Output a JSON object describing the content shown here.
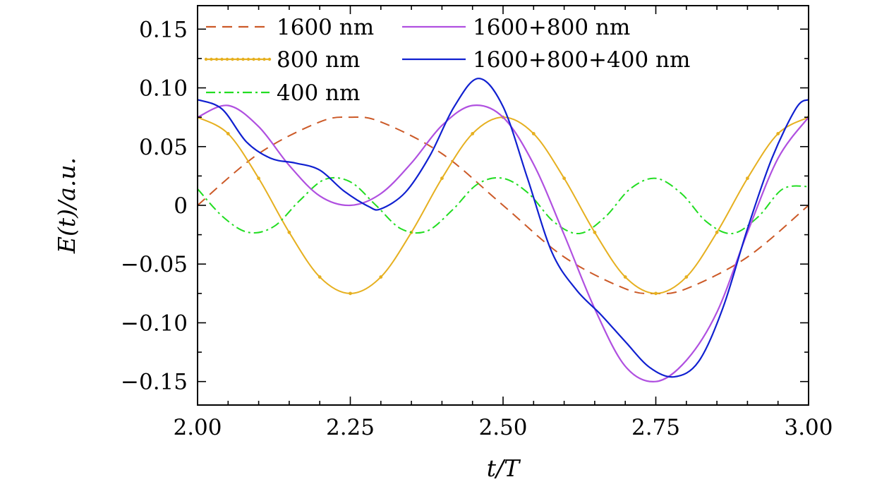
{
  "chart_data": {
    "type": "line",
    "title": "",
    "xlabel": "t/T",
    "ylabel": "E(t)/a.u.",
    "xlim": [
      2.0,
      3.0
    ],
    "ylim": [
      -0.17,
      0.17
    ],
    "x_ticks": [
      2.0,
      2.25,
      2.5,
      2.75,
      3.0
    ],
    "x_tick_labels": [
      "2.00",
      "2.25",
      "2.50",
      "2.75",
      "3.00"
    ],
    "y_ticks": [
      0.15,
      0.1,
      0.05,
      0,
      -0.05,
      -0.1,
      -0.15
    ],
    "y_tick_labels": [
      "0.15",
      "0.10",
      "0.05",
      "0",
      "−0.05",
      "−0.10",
      "−0.15"
    ],
    "grid": false,
    "legend_placement": "top",
    "series": [
      {
        "name": "1600 nm",
        "style": "dashed",
        "color": "#cc5a28",
        "x": [
          2.0,
          2.1,
          2.2,
          2.25,
          2.3,
          2.4,
          2.5,
          2.6,
          2.7,
          2.75,
          2.8,
          2.9,
          3.0
        ],
        "values": [
          0.0,
          0.044,
          0.071,
          0.075,
          0.071,
          0.044,
          0.0,
          -0.044,
          -0.071,
          -0.075,
          -0.071,
          -0.044,
          0.0
        ]
      },
      {
        "name": "800 nm",
        "style": "dotted-line",
        "color": "#e6b020",
        "x": [
          2.0,
          2.05,
          2.1,
          2.15,
          2.2,
          2.25,
          2.3,
          2.35,
          2.4,
          2.45,
          2.5,
          2.55,
          2.6,
          2.65,
          2.7,
          2.75,
          2.8,
          2.85,
          2.9,
          2.95,
          3.0
        ],
        "values": [
          0.075,
          0.061,
          0.023,
          -0.023,
          -0.061,
          -0.075,
          -0.061,
          -0.023,
          0.023,
          0.061,
          0.075,
          0.061,
          0.023,
          -0.023,
          -0.061,
          -0.075,
          -0.061,
          -0.023,
          0.023,
          0.061,
          0.075
        ]
      },
      {
        "name": "400 nm",
        "style": "dash-dot",
        "color": "#22dd22",
        "x": [
          2.0,
          2.042,
          2.083,
          2.125,
          2.167,
          2.208,
          2.25,
          2.292,
          2.333,
          2.375,
          2.417,
          2.458,
          2.5,
          2.542,
          2.583,
          2.625,
          2.667,
          2.708,
          2.75,
          2.792,
          2.833,
          2.875,
          2.917,
          2.958,
          3.0
        ],
        "values": [
          0.014,
          -0.01,
          -0.023,
          -0.018,
          0.004,
          0.022,
          0.02,
          0.0,
          -0.02,
          -0.022,
          -0.004,
          0.018,
          0.023,
          0.01,
          -0.014,
          -0.024,
          -0.01,
          0.014,
          0.023,
          0.01,
          -0.014,
          -0.024,
          -0.01,
          0.014,
          0.016
        ]
      },
      {
        "name": "1600+800 nm",
        "style": "solid",
        "color": "#b050e0",
        "x": [
          2.0,
          2.05,
          2.1,
          2.15,
          2.2,
          2.25,
          2.3,
          2.35,
          2.4,
          2.45,
          2.5,
          2.55,
          2.6,
          2.65,
          2.7,
          2.75,
          2.8,
          2.85,
          2.9,
          2.95,
          3.0
        ],
        "values": [
          0.075,
          0.085,
          0.067,
          0.034,
          0.008,
          0.0,
          0.01,
          0.036,
          0.068,
          0.085,
          0.075,
          0.035,
          -0.025,
          -0.088,
          -0.137,
          -0.15,
          -0.132,
          -0.091,
          -0.023,
          0.04,
          0.075
        ]
      },
      {
        "name": "1600+800+400 nm",
        "style": "solid",
        "color": "#1020d0",
        "x": [
          2.0,
          2.04,
          2.08,
          2.12,
          2.16,
          2.2,
          2.24,
          2.28,
          2.3,
          2.34,
          2.38,
          2.42,
          2.46,
          2.5,
          2.54,
          2.58,
          2.62,
          2.66,
          2.7,
          2.74,
          2.78,
          2.82,
          2.86,
          2.9,
          2.94,
          2.98,
          3.0
        ],
        "values": [
          0.09,
          0.082,
          0.054,
          0.04,
          0.036,
          0.03,
          0.012,
          -0.001,
          -0.003,
          0.011,
          0.042,
          0.084,
          0.108,
          0.084,
          0.023,
          -0.04,
          -0.072,
          -0.093,
          -0.116,
          -0.138,
          -0.146,
          -0.133,
          -0.087,
          -0.02,
          0.04,
          0.083,
          0.09
        ]
      }
    ]
  }
}
